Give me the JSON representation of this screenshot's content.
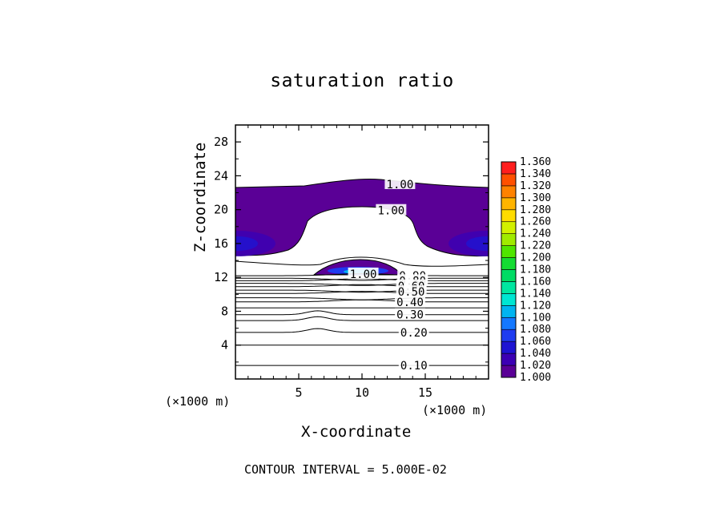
{
  "chart_data": {
    "type": "heatmap",
    "title": "saturation ratio",
    "xlabel": "X-coordinate",
    "ylabel": "Z-coordinate",
    "x_unit_label": "(×1000 m)",
    "xlim": [
      0,
      20
    ],
    "ylim": [
      0,
      30
    ],
    "x_ticks": [
      5,
      10,
      15
    ],
    "y_ticks": [
      4,
      8,
      12,
      16,
      20,
      24,
      28
    ],
    "contour_interval_text": "CONTOUR INTERVAL = 5.000E-02",
    "colorbar": {
      "levels": [
        "1.000",
        "1.020",
        "1.040",
        "1.060",
        "1.080",
        "1.100",
        "1.120",
        "1.140",
        "1.160",
        "1.180",
        "1.200",
        "1.220",
        "1.240",
        "1.260",
        "1.280",
        "1.300",
        "1.320",
        "1.340",
        "1.360"
      ],
      "colors": [
        "#5a0096",
        "#3c00b4",
        "#1e14d2",
        "#1e3cf0",
        "#1478ff",
        "#00b4f0",
        "#00e6d2",
        "#00e6a0",
        "#00dc64",
        "#14dc32",
        "#50e600",
        "#a0eb00",
        "#d2f000",
        "#ffdc00",
        "#ffb400",
        "#ff8200",
        "#ff5000",
        "#ff1e1e",
        "#ff7878"
      ]
    },
    "contour_labels": [
      {
        "text": "1.00",
        "x": 13.0,
        "z": 23.0
      },
      {
        "text": "1.00",
        "x": 12.3,
        "z": 19.9
      },
      {
        "text": "1.00",
        "x": 10.1,
        "z": 12.4
      },
      {
        "text": "0.90",
        "x": 14.0,
        "z": 12.2
      },
      {
        "text": "0.80",
        "x": 14.0,
        "z": 11.6
      },
      {
        "text": "0.60",
        "x": 13.9,
        "z": 11.0
      },
      {
        "text": "0.50",
        "x": 13.9,
        "z": 10.3
      },
      {
        "text": "0.40",
        "x": 13.8,
        "z": 9.1
      },
      {
        "text": "0.30",
        "x": 13.8,
        "z": 7.6
      },
      {
        "text": "0.20",
        "x": 14.1,
        "z": 5.5
      },
      {
        "text": "0.10",
        "x": 14.1,
        "z": 1.6
      }
    ],
    "filled_regions": [
      {
        "name": "upper saturated layer",
        "value_range": [
          1.0,
          1.04
        ],
        "x_range": [
          0,
          20
        ],
        "z_range": [
          14.6,
          23.5
        ]
      },
      {
        "name": "lower saturated cap",
        "value_range": [
          1.0,
          1.08
        ],
        "x_range": [
          6.5,
          12.7
        ],
        "z_range": [
          12.2,
          13.9
        ]
      }
    ]
  }
}
